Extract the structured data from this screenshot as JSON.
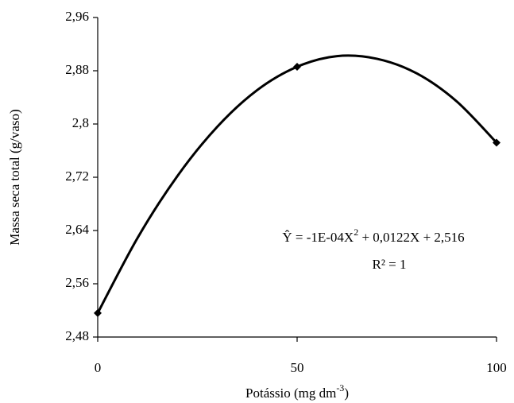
{
  "chart_data": {
    "type": "scatter",
    "y_label": "Massa seca total (g/vaso)",
    "x_label": [
      "Potássio (mg dm",
      "-3",
      ")"
    ],
    "xlim": [
      0,
      100
    ],
    "xticks": [
      0,
      50,
      100
    ],
    "ylim": [
      2.48,
      2.96
    ],
    "yticks": [
      {
        "value": 2.48,
        "label": "2,48"
      },
      {
        "value": 2.56,
        "label": "2,56"
      },
      {
        "value": 2.64,
        "label": "2,64"
      },
      {
        "value": 2.72,
        "label": "2,72"
      },
      {
        "value": 2.8,
        "label": "2,8"
      },
      {
        "value": 2.88,
        "label": "2,88"
      },
      {
        "value": 2.96,
        "label": "2,96"
      }
    ],
    "color": "#000000",
    "points": {
      "x": [
        0,
        50,
        100
      ],
      "values": [
        2.516,
        2.886,
        2.772
      ]
    },
    "trend": {
      "x": [
        0,
        10,
        20,
        30,
        40,
        50,
        60,
        70,
        80,
        90,
        100
      ],
      "values": [
        2.516,
        2.629,
        2.722,
        2.796,
        2.851,
        2.886,
        2.902,
        2.898,
        2.876,
        2.834,
        2.772
      ]
    },
    "equation": [
      "Ŷ = -1E-04X",
      "2",
      " + 0,0122X + 2,516"
    ],
    "r_squared": "R² = 1"
  }
}
